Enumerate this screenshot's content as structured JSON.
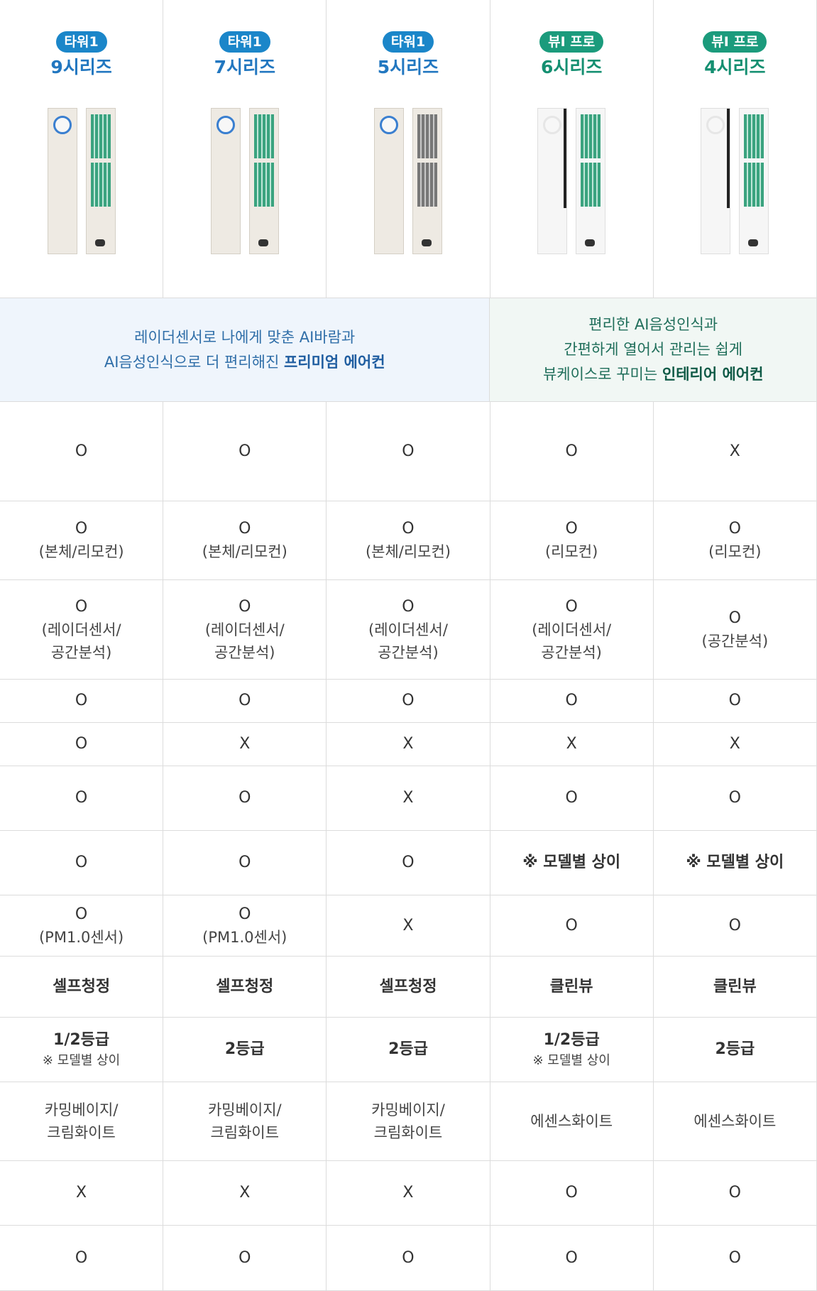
{
  "header": {
    "products": [
      {
        "badge": "타워1",
        "series": "9시리즈",
        "theme": "blue"
      },
      {
        "badge": "타워1",
        "series": "7시리즈",
        "theme": "blue"
      },
      {
        "badge": "타워1",
        "series": "5시리즈",
        "theme": "blue"
      },
      {
        "badge": "뷰I 프로",
        "series": "6시리즈",
        "theme": "green"
      },
      {
        "badge": "뷰I 프로",
        "series": "4시리즈",
        "theme": "green"
      }
    ]
  },
  "descriptions": {
    "premium": {
      "line1": "레이더센서로 나에게 맞춘 AI바람과",
      "line2a": "AI음성인식으로 더 편리해진 ",
      "line2b": "프리미엄 에어컨"
    },
    "interior": {
      "line1": "편리한 AI음성인식과",
      "line2": "간편하게 열어서 관리는 쉽게",
      "line3a": "뷰케이스로 꾸미는 ",
      "line3b": "인테리어 에어컨"
    }
  },
  "rows": [
    {
      "cells": [
        [
          "O"
        ],
        [
          "O"
        ],
        [
          "O"
        ],
        [
          "O"
        ],
        [
          "X"
        ]
      ]
    },
    {
      "cells": [
        [
          "O",
          "(본체/리모컨)"
        ],
        [
          "O",
          "(본체/리모컨)"
        ],
        [
          "O",
          "(본체/리모컨)"
        ],
        [
          "O",
          "(리모컨)"
        ],
        [
          "O",
          "(리모컨)"
        ]
      ]
    },
    {
      "cells": [
        [
          "O",
          "(레이더센서/",
          "공간분석)"
        ],
        [
          "O",
          "(레이더센서/",
          "공간분석)"
        ],
        [
          "O",
          "(레이더센서/",
          "공간분석)"
        ],
        [
          "O",
          "(레이더센서/",
          "공간분석)"
        ],
        [
          "O",
          "(공간분석)"
        ]
      ]
    },
    {
      "cells": [
        [
          "O"
        ],
        [
          "O"
        ],
        [
          "O"
        ],
        [
          "O"
        ],
        [
          "O"
        ]
      ]
    },
    {
      "cells": [
        [
          "O"
        ],
        [
          "X"
        ],
        [
          "X"
        ],
        [
          "X"
        ],
        [
          "X"
        ]
      ]
    },
    {
      "cells": [
        [
          "O"
        ],
        [
          "O"
        ],
        [
          "X"
        ],
        [
          "O"
        ],
        [
          "O"
        ]
      ]
    },
    {
      "cells": [
        [
          "O"
        ],
        [
          "O"
        ],
        [
          "O"
        ],
        [
          "※ 모델별 상이"
        ],
        [
          "※ 모델별 상이"
        ]
      ]
    },
    {
      "cells": [
        [
          "O",
          "(PM1.0센서)"
        ],
        [
          "O",
          "(PM1.0센서)"
        ],
        [
          "X"
        ],
        [
          "O"
        ],
        [
          "O"
        ]
      ]
    },
    {
      "cells": [
        [
          "셀프청정"
        ],
        [
          "셀프청정"
        ],
        [
          "셀프청정"
        ],
        [
          "클린뷰"
        ],
        [
          "클린뷰"
        ]
      ]
    },
    {
      "cells": [
        [
          "1/2등급",
          "※ 모델별 상이"
        ],
        [
          "2등급"
        ],
        [
          "2등급"
        ],
        [
          "1/2등급",
          "※ 모델별 상이"
        ],
        [
          "2등급"
        ]
      ]
    },
    {
      "cells": [
        [
          "카밍베이지/",
          "크림화이트"
        ],
        [
          "카밍베이지/",
          "크림화이트"
        ],
        [
          "카밍베이지/",
          "크림화이트"
        ],
        [
          "에센스화이트"
        ],
        [
          "에센스화이트"
        ]
      ]
    },
    {
      "cells": [
        [
          "X"
        ],
        [
          "X"
        ],
        [
          "X"
        ],
        [
          "O"
        ],
        [
          "O"
        ]
      ]
    },
    {
      "cells": [
        [
          "O"
        ],
        [
          "O"
        ],
        [
          "O"
        ],
        [
          "O"
        ],
        [
          "O"
        ]
      ]
    }
  ]
}
